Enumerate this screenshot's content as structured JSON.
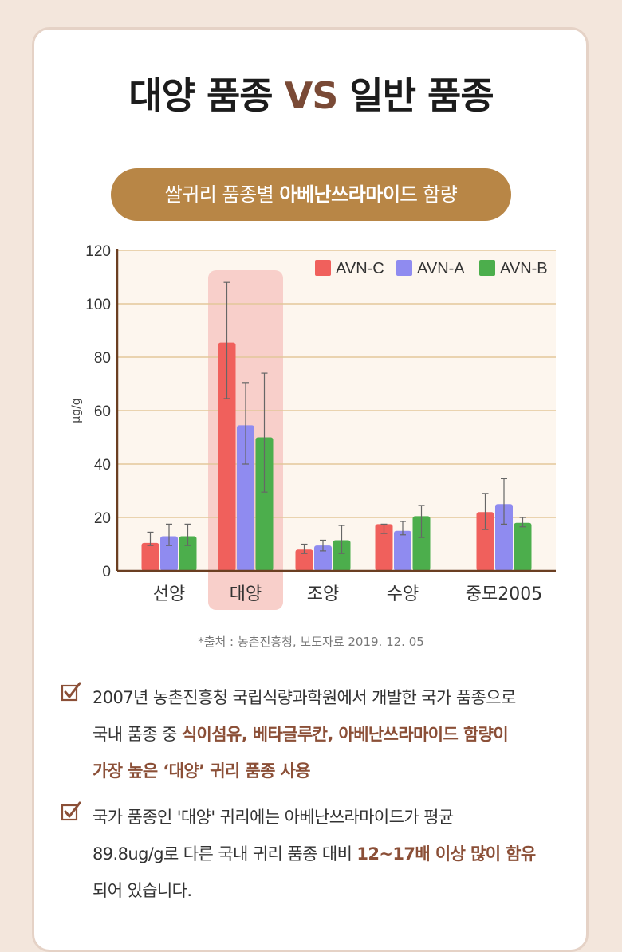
{
  "headline": {
    "part1": "대양 품종",
    "vs": "VS",
    "part2": "일반 품종"
  },
  "pill": {
    "pre": "쌀귀리 품종별",
    "bold": "아베난쓰라마이드",
    "post": "함량"
  },
  "chart_data": {
    "type": "bar",
    "categories": [
      "선양",
      "대양",
      "조양",
      "수양",
      "중모2005"
    ],
    "series": [
      {
        "name": "AVN-C",
        "color": "#f0605c",
        "values": [
          10.5,
          85.5,
          8,
          17.5,
          22
        ],
        "err_low": [
          9.5,
          64.5,
          6.5,
          14,
          15.5
        ],
        "err_high": [
          14.5,
          108,
          10,
          17.5,
          29
        ]
      },
      {
        "name": "AVN-A",
        "color": "#8f8bf0",
        "values": [
          13,
          54.5,
          9.5,
          15,
          25
        ],
        "err_low": [
          9.5,
          40,
          7.5,
          13.5,
          17.5
        ],
        "err_high": [
          17.5,
          70.5,
          11.5,
          18.5,
          34.5
        ]
      },
      {
        "name": "AVN-B",
        "color": "#4cae4c",
        "values": [
          13,
          50,
          11.5,
          20.5,
          18
        ],
        "err_low": [
          9.5,
          29.5,
          6.5,
          12.5,
          16.5
        ],
        "err_high": [
          17.5,
          74,
          17,
          24.5,
          20
        ]
      }
    ],
    "highlight_category": "대양",
    "ylabel": "μg/g",
    "ylim": [
      0,
      120
    ],
    "yticks": [
      0,
      20,
      40,
      60,
      80,
      100,
      120
    ],
    "grid": true,
    "legend": "top-right"
  },
  "source": "*출처 : 농촌진흥청, 보도자료 2019. 12. 05",
  "bullets": [
    {
      "icon": "checkbox-icon",
      "lines": [
        [
          {
            "t": "2007년 농촌진흥청 국립식량과학원에서 개발한 국가 품종으로",
            "hl": false
          }
        ],
        [
          {
            "t": "국내 품종 중 ",
            "hl": false
          },
          {
            "t": "식이섬유, 베타글루칸, 아베난쓰라마이드 함량이",
            "hl": true
          }
        ],
        [
          {
            "t": "가장 높은 ‘대양’ 귀리 품종 사용",
            "hl": true
          }
        ]
      ]
    },
    {
      "icon": "checkbox-icon",
      "lines": [
        [
          {
            "t": "국가 품종인 '대양' 귀리에는 아베난쓰라마이드가  평균",
            "hl": false
          }
        ],
        [
          {
            "t": "89.8ug/g로 다른 국내 귀리 품종 대비 ",
            "hl": false
          },
          {
            "t": "12~17배 이상 많이 함유",
            "hl": true
          }
        ],
        [
          {
            "t": "되어 있습니다.",
            "hl": false
          }
        ]
      ]
    }
  ],
  "colors": {
    "accent": "#8b4f37",
    "pill": "#b88646",
    "plot_bg": "#fdf6ee",
    "highlight": "#f8cfca"
  }
}
